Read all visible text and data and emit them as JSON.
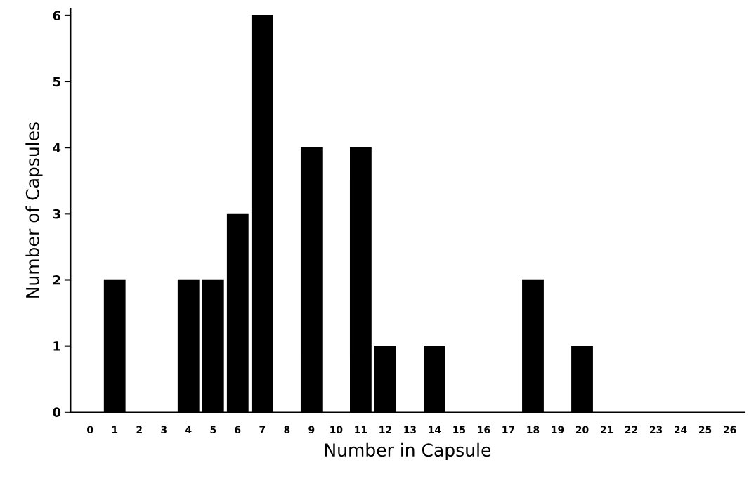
{
  "chart_data": {
    "type": "bar",
    "xlabel": "Number in Capsule",
    "ylabel": "Number of Capsules",
    "categories": [
      "0",
      "1",
      "2",
      "3",
      "4",
      "5",
      "6",
      "7",
      "8",
      "9",
      "10",
      "11",
      "12",
      "13",
      "14",
      "15",
      "16",
      "17",
      "18",
      "19",
      "20",
      "21",
      "22",
      "23",
      "24",
      "25",
      "26"
    ],
    "values": [
      0,
      2,
      0,
      0,
      2,
      2,
      3,
      6,
      0,
      4,
      0,
      4,
      1,
      0,
      1,
      0,
      0,
      0,
      2,
      0,
      1,
      0,
      0,
      0,
      0,
      0,
      0
    ],
    "color": "#000000",
    "ylim": [
      0,
      6.1
    ],
    "yticks": [
      0,
      1,
      2,
      3,
      4,
      5,
      6
    ],
    "grid": false
  }
}
